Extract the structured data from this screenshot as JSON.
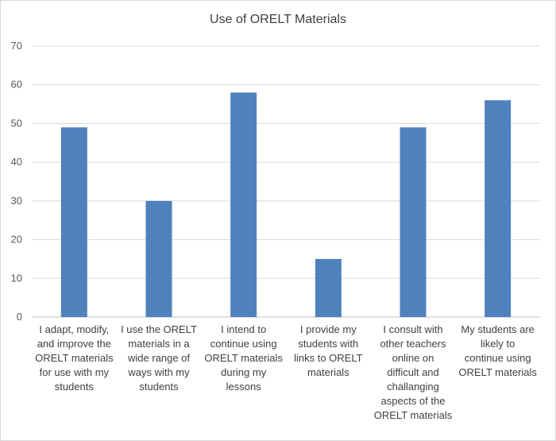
{
  "chart_data": {
    "type": "bar",
    "title": "Use of ORELT Materials",
    "xlabel": "",
    "ylabel": "",
    "ylim": [
      0,
      70
    ],
    "yticks": [
      0,
      10,
      20,
      30,
      40,
      50,
      60,
      70
    ],
    "grid": true,
    "legend": "none",
    "bar_color": "#4f81bd",
    "categories": [
      [
        "I adapt, modify,",
        "and improve the",
        "ORELT materials",
        "for use with my",
        "students"
      ],
      [
        "I use the ORELT",
        "materials in a",
        "wide range of",
        "ways with my",
        "students"
      ],
      [
        "I intend to",
        "continue using",
        "ORELT materials",
        "during my",
        "lessons"
      ],
      [
        "I provide my",
        "students with",
        "links to ORELT",
        "materials"
      ],
      [
        "I consult with",
        "other teachers",
        "online on",
        "difficult and",
        "challanging",
        "aspects of the",
        "ORELT materials"
      ],
      [
        "My students are",
        "likely to",
        "continue using",
        "ORELT materials"
      ]
    ],
    "values": [
      49,
      30,
      58,
      15,
      49,
      56
    ]
  }
}
